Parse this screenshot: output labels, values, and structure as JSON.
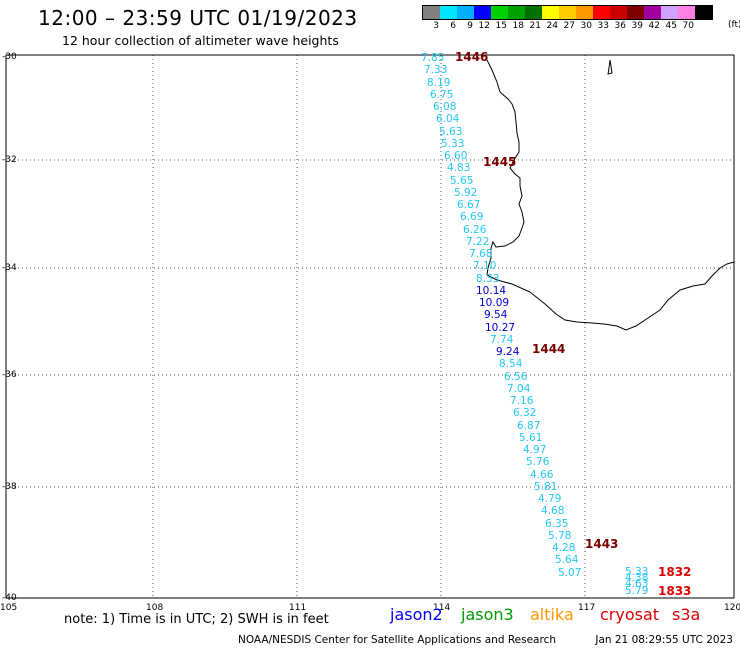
{
  "header": {
    "title": "12:00 – 23:59 UTC 01/19/2023",
    "subtitle": "12 hour collection of altimeter wave heights"
  },
  "colorbar": {
    "labels": [
      "3",
      "6",
      "9",
      "12",
      "15",
      "18",
      "21",
      "24",
      "27",
      "30",
      "33",
      "36",
      "39",
      "42",
      "45",
      "70"
    ],
    "units": "(ft)",
    "colors": [
      "#808080",
      "#00e5ff",
      "#00b0ff",
      "#0000ff",
      "#00d000",
      "#00a000",
      "#007000",
      "#ffff00",
      "#ffcc00",
      "#ff9900",
      "#ff0000",
      "#cc0000",
      "#800000",
      "#a000a0",
      "#d0a0ff",
      "#ff80e0",
      "#000000"
    ]
  },
  "axes": {
    "lat_labels": [
      "-30",
      "-32",
      "-34",
      "-36",
      "-38",
      "-40"
    ],
    "lon_labels": [
      "105",
      "108",
      "111",
      "114",
      "117",
      "120"
    ]
  },
  "track": {
    "values": [
      "7.85",
      "7.33",
      "8.19",
      "6.75",
      "6.08",
      "6.04",
      "5.63",
      "5.33",
      "6.60",
      "4.83",
      "5.65",
      "5.92",
      "6.67",
      "6.69",
      "6.26",
      "7.22",
      "7.68",
      "7.10",
      "8.33",
      "10.14",
      "10.09",
      "9.54",
      "10.27",
      "7.74",
      "9.24",
      "8.54",
      "6.56",
      "7.04",
      "7.16",
      "6.32",
      "6.87",
      "5.61",
      "4.97",
      "5.76",
      "4.66",
      "5.81",
      "4.79",
      "4.68",
      "6.35",
      "5.78",
      "4.28",
      "5.64",
      "5.07"
    ],
    "times": [
      "1446",
      "1445",
      "1444",
      "1443"
    ]
  },
  "s3a": {
    "values": [
      "5.33",
      "4.38",
      "4.63",
      "5.79"
    ],
    "times": [
      "1832",
      "1833"
    ]
  },
  "note": "note:  1) Time is in UTC;  2) SWH is in feet",
  "legend": {
    "jason2": "jason2",
    "jason3": "jason3",
    "altika": "altika",
    "cryosat": "cryosat",
    "s3a": "s3a"
  },
  "footer": {
    "center": "NOAA/NESDIS Center for Satellite Applications and Research",
    "timestamp": "Jan 21 08:29:55 UTC 2023"
  },
  "map_colors": {
    "coast": "#000000",
    "grid": "#555555",
    "light_cyan": "#22c8f0",
    "blue": "#0000cc",
    "time": "#7a0000",
    "s3a_time": "#dd0000",
    "jason2": "#0000ff",
    "jason3": "#009900",
    "altika": "#ff9900",
    "cryosat": "#dd0000",
    "s3a": "#dd0000"
  }
}
